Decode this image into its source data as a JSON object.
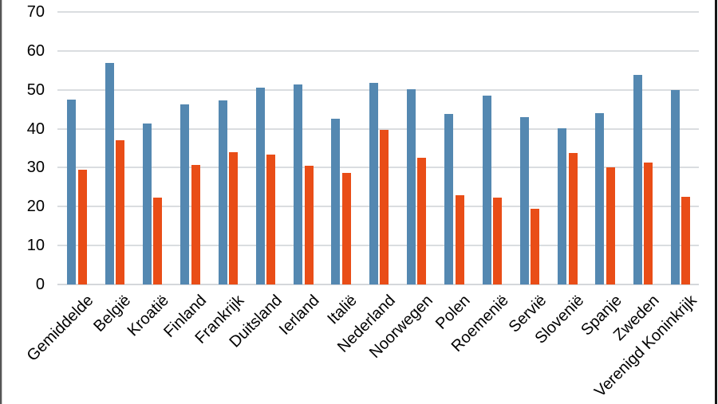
{
  "chart_data": {
    "type": "bar",
    "title": "",
    "xlabel": "",
    "ylabel": "",
    "categories": [
      "Gemiddelde",
      "België",
      "Kroatië",
      "Finland",
      "Frankrijk",
      "Duitsland",
      "Ierland",
      "Italië",
      "Nederland",
      "Noorwegen",
      "Polen",
      "Roemenië",
      "Servië",
      "Slovenië",
      "Spanje",
      "Zweden",
      "Verenigd Koninkrijk"
    ],
    "series": [
      {
        "name": "blue",
        "color": "#5488B1",
        "values": [
          47.5,
          57.0,
          41.3,
          46.3,
          47.2,
          50.5,
          51.3,
          42.5,
          51.7,
          50.2,
          43.8,
          48.6,
          43.0,
          40.1,
          44.1,
          53.8,
          50.0
        ]
      },
      {
        "name": "orange",
        "color": "#E94D17",
        "values": [
          29.5,
          37.0,
          22.3,
          30.8,
          34.0,
          33.3,
          30.5,
          28.7,
          39.8,
          32.5,
          23.0,
          22.3,
          19.4,
          33.7,
          30.0,
          31.3,
          22.5
        ]
      }
    ],
    "ylim": [
      0,
      70
    ],
    "yticks": [
      0,
      10,
      20,
      30,
      40,
      50,
      60,
      70
    ],
    "grid": true,
    "legend": false,
    "gridline_color": "#DADDE0",
    "axis_line_color": "#D4D7DB",
    "text_color": "#000000",
    "background_color": "#ffffff"
  }
}
